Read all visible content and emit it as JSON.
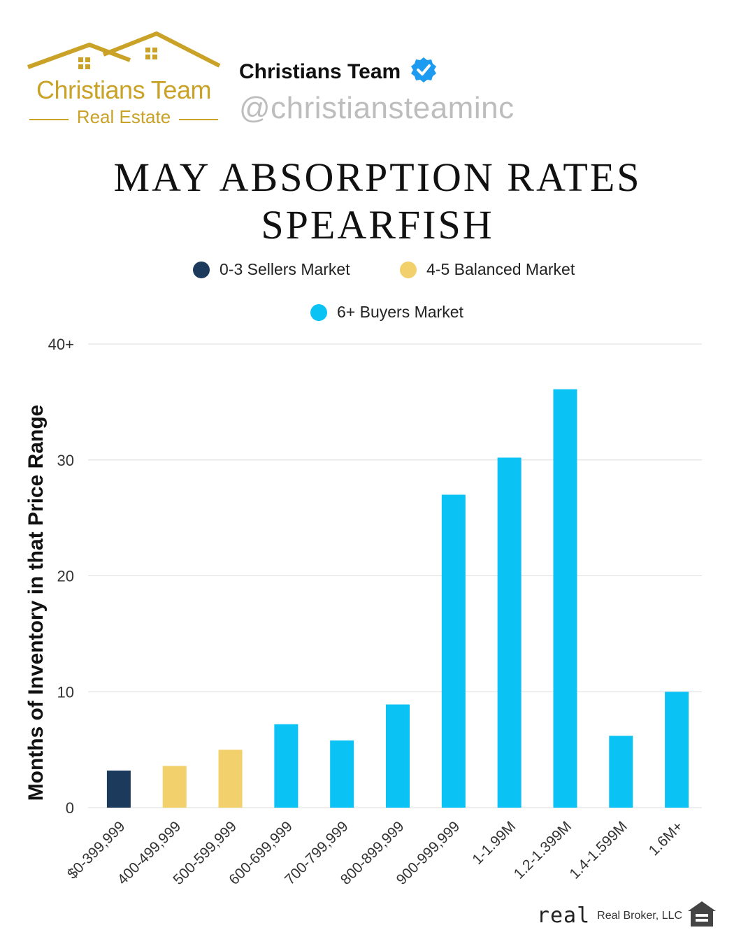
{
  "brand": {
    "logo_name": "Christians Team",
    "logo_sub": "Real Estate",
    "account_name": "Christians Team",
    "handle": "@christiansteaminc",
    "gold": "#c9a227",
    "verified_color": "#1d9bf0"
  },
  "title_line1": "MAY ABSORPTION RATES",
  "title_line2": "SPEARFISH",
  "legend": [
    {
      "label": "0-3 Sellers Market",
      "color": "#1b3a5c"
    },
    {
      "label": "4-5 Balanced Market",
      "color": "#f2d06b"
    },
    {
      "label": "6+ Buyers Market",
      "color": "#0bc2f4"
    }
  ],
  "footer": {
    "brand": "real",
    "text": "Real Broker, LLC",
    "icon": "equal-housing-icon"
  },
  "chart_data": {
    "type": "bar",
    "ylabel": "Months of Inventory in that Price Range",
    "ylim": [
      0,
      40
    ],
    "yticks": [
      0,
      10,
      20,
      30,
      40
    ],
    "ytick_labels": [
      "0",
      "10",
      "20",
      "30",
      "40+"
    ],
    "grid": true,
    "categories": [
      "$0-399,999",
      "400-499,999",
      "500-599,999",
      "600-699,999",
      "700-799,999",
      "800-899,999",
      "900-999,999",
      "1-1.99M",
      "1.2-1.399M",
      "1.4-1.599M",
      "1.6M+"
    ],
    "values": [
      3.2,
      3.6,
      5.0,
      7.2,
      5.8,
      8.9,
      27.0,
      30.2,
      36.1,
      6.2,
      10.0
    ],
    "bar_market": [
      "0-3 Sellers Market",
      "4-5 Balanced Market",
      "4-5 Balanced Market",
      "6+ Buyers Market",
      "6+ Buyers Market",
      "6+ Buyers Market",
      "6+ Buyers Market",
      "6+ Buyers Market",
      "6+ Buyers Market",
      "6+ Buyers Market",
      "6+ Buyers Market"
    ]
  }
}
